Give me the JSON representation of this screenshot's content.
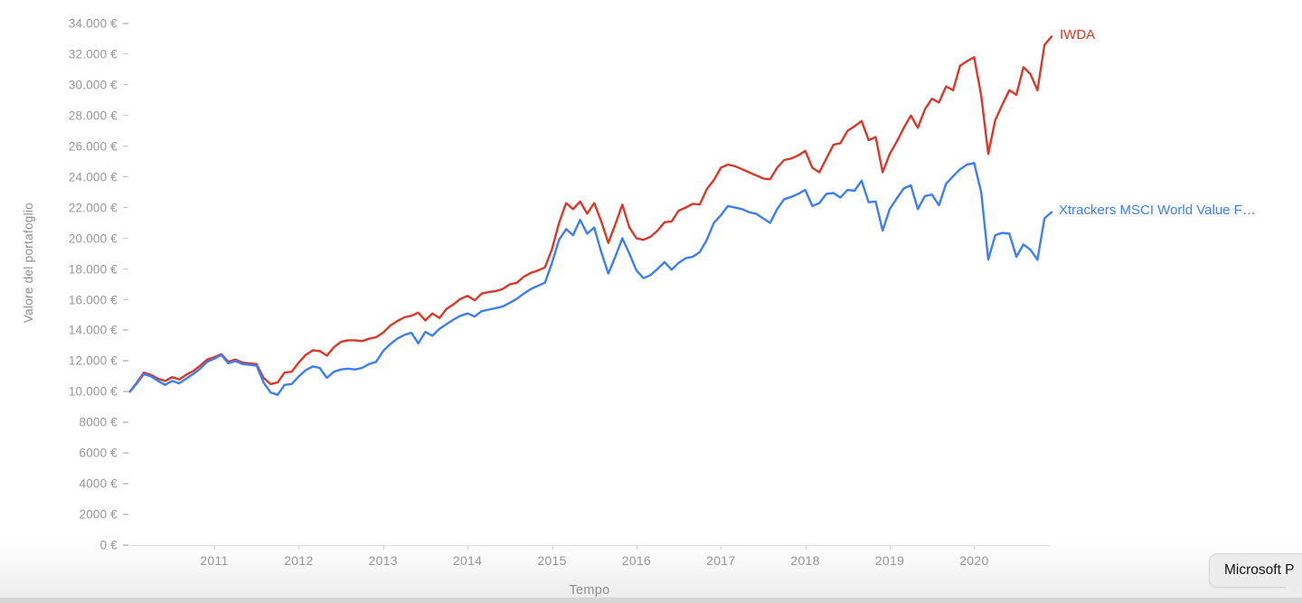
{
  "colors": {
    "iwda_red": "#d8392b",
    "xtrackers_blue": "#3d7ff2",
    "axis_text_gray": "#969696",
    "axis_line_gray": "#dedede",
    "tooltip_bg": "#ececec"
  },
  "tooltip": {
    "text": "Microsoft P"
  },
  "chart_data": {
    "type": "line",
    "title": "",
    "xlabel": "Tempo",
    "ylabel": "Valore del portafoglio",
    "grid": false,
    "legend_position": "end-of-line",
    "ylim": [
      0,
      34000
    ],
    "x_start_year": 2010,
    "x_frequency": "monthly",
    "x_tick_years": [
      2011,
      2012,
      2013,
      2014,
      2015,
      2016,
      2017,
      2018,
      2019,
      2020
    ],
    "y_ticks": [
      {
        "value": 34000,
        "label": "34.000 €"
      },
      {
        "value": 32000,
        "label": "32.000 €"
      },
      {
        "value": 30000,
        "label": "30.000 €"
      },
      {
        "value": 28000,
        "label": "28.000 €"
      },
      {
        "value": 26000,
        "label": "26.000 €"
      },
      {
        "value": 24000,
        "label": "24.000 €"
      },
      {
        "value": 22000,
        "label": "22.000 €"
      },
      {
        "value": 20000,
        "label": "20.000 €"
      },
      {
        "value": 18000,
        "label": "18.000 €"
      },
      {
        "value": 16000,
        "label": "16.000 €"
      },
      {
        "value": 14000,
        "label": "14.000 €"
      },
      {
        "value": 12000,
        "label": "12.000 €"
      },
      {
        "value": 10000,
        "label": "10.000 €"
      },
      {
        "value": 8000,
        "label": "8000 €"
      },
      {
        "value": 6000,
        "label": "6000 €"
      },
      {
        "value": 4000,
        "label": "4000 €"
      },
      {
        "value": 2000,
        "label": "2000 €"
      },
      {
        "value": 0,
        "label": "0 €"
      }
    ],
    "series": [
      {
        "name": "IWDA",
        "color": "#d8392b",
        "values": [
          10000,
          10600,
          11250,
          11100,
          10850,
          10700,
          10950,
          10800,
          11100,
          11350,
          11700,
          12100,
          12250,
          12450,
          11950,
          12100,
          11900,
          11850,
          11800,
          10900,
          10500,
          10600,
          11250,
          11300,
          11900,
          12400,
          12700,
          12650,
          12350,
          12900,
          13250,
          13350,
          13350,
          13300,
          13450,
          13550,
          13850,
          14300,
          14600,
          14850,
          14950,
          15150,
          14650,
          15100,
          14800,
          15400,
          15700,
          16050,
          16250,
          15950,
          16400,
          16500,
          16550,
          16700,
          17000,
          17100,
          17500,
          17750,
          17900,
          18100,
          19300,
          21000,
          22300,
          21900,
          22400,
          21600,
          22300,
          21100,
          19700,
          20900,
          22200,
          20700,
          20000,
          19900,
          20100,
          20500,
          21050,
          21100,
          21800,
          22000,
          22250,
          22200,
          23200,
          23800,
          24600,
          24800,
          24700,
          24500,
          24300,
          24100,
          23900,
          23850,
          24600,
          25100,
          25200,
          25400,
          25700,
          24600,
          24300,
          25200,
          26100,
          26200,
          27000,
          27300,
          27650,
          26400,
          26600,
          24300,
          25500,
          26300,
          27200,
          28000,
          27200,
          28400,
          29100,
          28850,
          29900,
          29650,
          31250,
          31550,
          31800,
          29300,
          25500,
          27700,
          28700,
          29650,
          29350,
          31150,
          30700,
          29650,
          32600,
          33150
        ]
      },
      {
        "name": "Xtrackers MSCI World Value F…",
        "color": "#3d7ff2",
        "values": [
          10000,
          10550,
          11150,
          11000,
          10700,
          10450,
          10700,
          10550,
          10850,
          11150,
          11500,
          11950,
          12150,
          12400,
          11850,
          12000,
          11800,
          11750,
          11700,
          10600,
          9950,
          9800,
          10450,
          10500,
          11000,
          11400,
          11650,
          11550,
          10900,
          11300,
          11450,
          11500,
          11450,
          11550,
          11800,
          11950,
          12650,
          13100,
          13450,
          13700,
          13850,
          13150,
          13900,
          13650,
          14100,
          14400,
          14700,
          14950,
          15100,
          14900,
          15250,
          15350,
          15450,
          15550,
          15800,
          16050,
          16400,
          16700,
          16900,
          17100,
          18400,
          19900,
          20600,
          20200,
          21200,
          20300,
          20700,
          19100,
          17700,
          18800,
          20000,
          19000,
          17900,
          17400,
          17600,
          18000,
          18450,
          17950,
          18400,
          18700,
          18800,
          19100,
          19900,
          21000,
          21500,
          22100,
          22000,
          21900,
          21700,
          21600,
          21300,
          21000,
          21900,
          22550,
          22700,
          22900,
          23150,
          22100,
          22300,
          22900,
          22950,
          22650,
          23150,
          23100,
          23750,
          22350,
          22400,
          20500,
          21900,
          22600,
          23250,
          23450,
          21900,
          22750,
          22850,
          22150,
          23550,
          24050,
          24500,
          24800,
          24900,
          23000,
          18600,
          20200,
          20350,
          20300,
          18800,
          19600,
          19250,
          18600,
          21300,
          21700
        ]
      }
    ]
  }
}
